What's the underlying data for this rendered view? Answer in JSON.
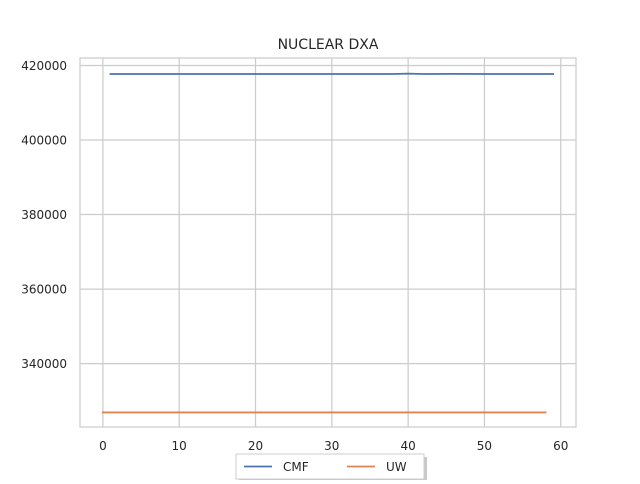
{
  "chart_data": {
    "type": "line",
    "title": "NUCLEAR DXA",
    "xlabel": "",
    "ylabel": "",
    "xlim": [
      -3,
      62
    ],
    "ylim": [
      323000,
      422000
    ],
    "xticks": [
      0,
      10,
      20,
      30,
      40,
      50,
      60
    ],
    "yticks": [
      340000,
      360000,
      380000,
      400000,
      420000
    ],
    "grid": true,
    "legend": {
      "placement": "bottom-center",
      "columns": 2
    },
    "series": [
      {
        "name": "CMF",
        "color": "#4c72b0",
        "x": [
          1,
          10,
          20,
          30,
          38,
          40,
          42,
          46,
          50,
          55,
          59
        ],
        "y": [
          417700,
          417700,
          417700,
          417700,
          417700,
          417800,
          417700,
          417750,
          417700,
          417700,
          417700
        ]
      },
      {
        "name": "UW",
        "color": "#dd8452",
        "x": [
          0,
          10,
          20,
          30,
          40,
          50,
          58
        ],
        "y": [
          326900,
          326900,
          326900,
          326900,
          326900,
          326900,
          326900
        ]
      }
    ]
  }
}
